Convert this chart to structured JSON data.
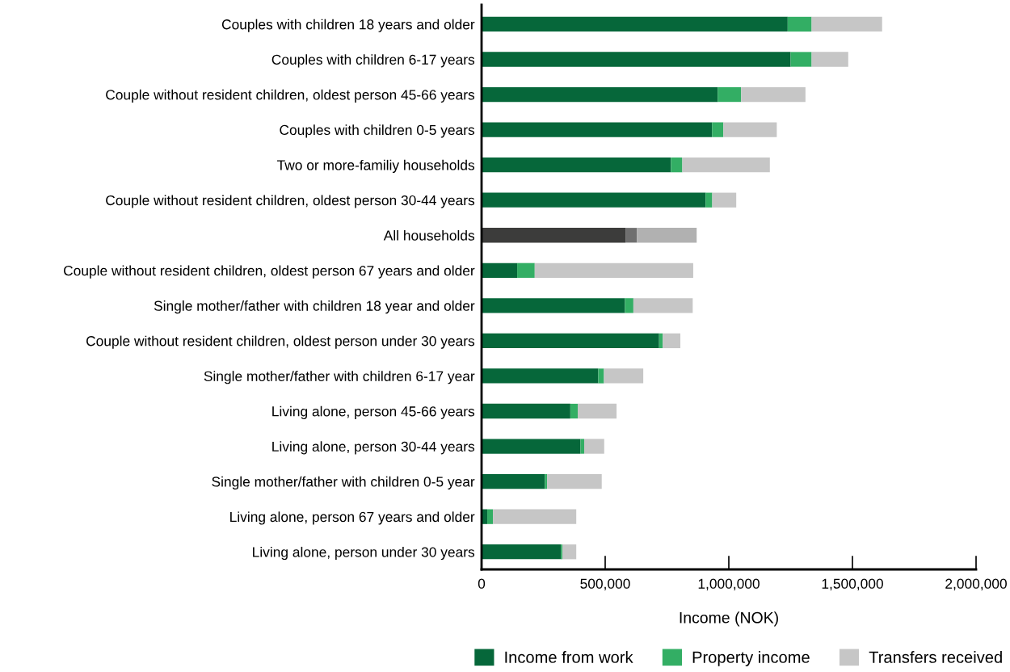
{
  "chart_data": {
    "type": "bar",
    "orientation": "horizontal",
    "stacked": true,
    "xlabel": "Income (NOK)",
    "categories": [
      "Couples with children 18 years and older",
      "Couples with children 6-17 years",
      "Couple without resident children, oldest person 45-66 years",
      "Couples with children 0-5 years",
      "Two or more-familiy households",
      "Couple without resident children, oldest person 30-44 years",
      "All households",
      "Couple without resident children, oldest person 67 years and older",
      "Single mother/father with children 18 year and older",
      "Couple without resident children, oldest person under 30 years",
      "Single mother/father with children 6-17 year",
      "Living alone, person 45-66 years",
      "Living alone, person 30-44 years",
      "Single mother/father with children 0-5 year",
      "Living alone, person 67 years and older",
      "Living alone, person under 30 years"
    ],
    "series": [
      {
        "name": "Income from work",
        "color": "#06673a",
        "colors": [
          "#06673a",
          "#06673a",
          "#06673a",
          "#06673a",
          "#06673a",
          "#06673a",
          "#3c3c3b",
          "#06673a",
          "#06673a",
          "#06673a",
          "#06673a",
          "#06673a",
          "#06673a",
          "#06673a",
          "#06673a",
          "#06673a"
        ],
        "values": [
          1238000,
          1250000,
          955000,
          932000,
          766000,
          906000,
          582000,
          144000,
          580000,
          718000,
          472000,
          359000,
          400000,
          256000,
          23000,
          321000
        ]
      },
      {
        "name": "Property income",
        "color": "#33ae64",
        "colors": [
          "#33ae64",
          "#33ae64",
          "#33ae64",
          "#33ae64",
          "#33ae64",
          "#33ae64",
          "#6f6f6f",
          "#33ae64",
          "#33ae64",
          "#33ae64",
          "#33ae64",
          "#33ae64",
          "#33ae64",
          "#33ae64",
          "#33ae64",
          "#33ae64"
        ],
        "values": [
          97000,
          85000,
          95000,
          46000,
          46000,
          27000,
          46000,
          71000,
          34000,
          15000,
          23000,
          30000,
          15000,
          9000,
          23000,
          6000
        ]
      },
      {
        "name": "Transfers received",
        "color": "#c6c6c6",
        "colors": [
          "#c6c6c6",
          "#c6c6c6",
          "#c6c6c6",
          "#c6c6c6",
          "#c6c6c6",
          "#c6c6c6",
          "#b1b1b1",
          "#c6c6c6",
          "#c6c6c6",
          "#c6c6c6",
          "#c6c6c6",
          "#c6c6c6",
          "#c6c6c6",
          "#c6c6c6",
          "#c6c6c6",
          "#c6c6c6"
        ],
        "values": [
          285000,
          148000,
          260000,
          216000,
          354000,
          97000,
          242000,
          641000,
          240000,
          71000,
          159000,
          157000,
          81000,
          221000,
          337000,
          56000
        ]
      }
    ],
    "xlim": [
      0,
      2000000
    ],
    "xticks": [
      {
        "value": 0,
        "label": "0"
      },
      {
        "value": 500000,
        "label": "500,000"
      },
      {
        "value": 1000000,
        "label": "1,000,000"
      },
      {
        "value": 1500000,
        "label": "1,500,000"
      },
      {
        "value": 2000000,
        "label": "2,000,000"
      }
    ],
    "grid": false,
    "legend": "bottom"
  }
}
